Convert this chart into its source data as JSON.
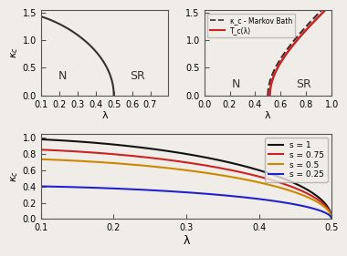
{
  "fig_width": 7.32,
  "fig_height": 5.4,
  "bg_color": "#f0ede8",
  "top_left": {
    "xlim": [
      0.1,
      0.8
    ],
    "ylim": [
      0.0,
      1.55
    ],
    "xticks": [
      0.1,
      0.2,
      0.3,
      0.4,
      0.5,
      0.6,
      0.7
    ],
    "yticks": [
      0.0,
      0.5,
      1.0,
      1.5
    ],
    "xlabel": "λ",
    "ylabel": "κ_c",
    "label_N": [
      0.22,
      0.35
    ],
    "label_SR": [
      0.63,
      0.35
    ],
    "curve_color": "#333333",
    "lw": 1.5
  },
  "top_right": {
    "xlim": [
      0.0,
      1.0
    ],
    "ylim": [
      0.0,
      1.55
    ],
    "xticks": [
      0.0,
      0.2,
      0.4,
      0.6,
      0.8,
      1.0
    ],
    "yticks": [
      0.0,
      0.5,
      1.0,
      1.5
    ],
    "xlabel": "λ",
    "ylabel": "",
    "label_N": [
      0.25,
      0.2
    ],
    "label_SR": [
      0.78,
      0.2
    ],
    "markov_color": "#333333",
    "tc_color": "#cc2222",
    "legend_markov": "κ_c - Markov Bath",
    "legend_tc": "T_c(λ)",
    "lw": 1.5
  },
  "bottom": {
    "xlim": [
      0.1,
      0.5
    ],
    "ylim": [
      0.0,
      1.05
    ],
    "xticks": [
      0.1,
      0.2,
      0.3,
      0.4,
      0.5
    ],
    "yticks": [
      0.0,
      0.2,
      0.4,
      0.6,
      0.8,
      1.0
    ],
    "xlabel": "λ",
    "ylabel": "κ_c",
    "series": [
      {
        "s": 1.0,
        "color": "#111111",
        "label": "s = 1"
      },
      {
        "s": 0.75,
        "color": "#cc2222",
        "label": "s = 0.75"
      },
      {
        "s": 0.5,
        "color": "#cc8800",
        "label": "s = 0.5"
      },
      {
        "s": 0.25,
        "color": "#2222cc",
        "label": "s = 0.25"
      }
    ],
    "lw": 1.5
  }
}
